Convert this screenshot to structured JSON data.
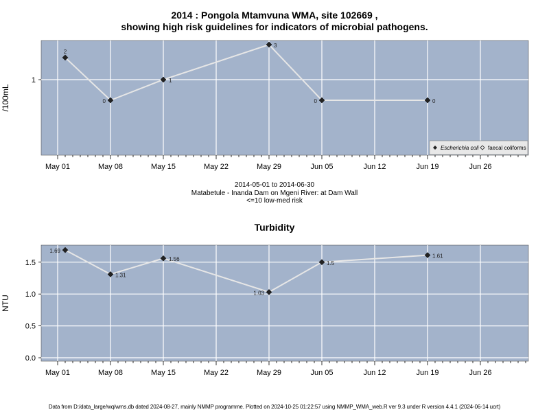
{
  "title_line1": "2014 : Pongola Mtamvuna WMA, site 102669 ,",
  "title_line2": "showing high risk guidelines for indicators of microbial pathogens.",
  "info": {
    "date_range": "2014-05-01 to 2014-06-30",
    "location": "Matabetule - Inanda Dam on Mgeni River: at Dam Wall",
    "risk": "<=10 low-med risk"
  },
  "footer": "Data from D:/data_large/wq/wms.db dated 2024-08-27, mainly NMMP programme. Plotted on 2024-10-25 01:22:57 using NMMP_WMA_web.R ver 9.3 under R version 4.4.1 (2024-06-14 ucrt)",
  "colors": {
    "panel_bg": "#a3b3cb",
    "grid": "#ffffff",
    "line": "#e6e6e6",
    "point": "#222222"
  },
  "chart_data": [
    {
      "type": "line",
      "title": "",
      "xlabel": "",
      "ylabel": "/100mL",
      "y_scale": "log",
      "x": [
        "2014-05-02",
        "2014-05-08",
        "2014-05-15",
        "2014-05-29",
        "2014-06-05",
        "2014-06-19"
      ],
      "values": [
        2,
        0,
        1,
        3,
        0,
        0
      ],
      "point_labels": [
        "2",
        "0",
        "1",
        "3",
        "0",
        "0"
      ],
      "y_ticks": [
        "1"
      ],
      "x_ticks": [
        "May 01",
        "May 08",
        "May 15",
        "May 22",
        "May 29",
        "Jun 05",
        "Jun 12",
        "Jun 19",
        "Jun 26"
      ],
      "series": [
        {
          "name": "Escherichia coli",
          "marker": "filled-diamond"
        },
        {
          "name": "faecal coliforms",
          "marker": "open-diamond"
        }
      ],
      "legend_position": "bottom-right",
      "grid": true
    },
    {
      "type": "line",
      "title": "Turbidity",
      "xlabel": "",
      "ylabel": "NTU",
      "x": [
        "2014-05-02",
        "2014-05-08",
        "2014-05-15",
        "2014-05-29",
        "2014-06-05",
        "2014-06-19"
      ],
      "values": [
        1.69,
        1.31,
        1.56,
        1.03,
        1.5,
        1.61
      ],
      "point_labels": [
        "1.69",
        "1.31",
        "1.56",
        "1.03",
        "1.5",
        "1.61"
      ],
      "y_ticks": [
        "0.0",
        "0.5",
        "1.0",
        "1.5"
      ],
      "x_ticks": [
        "May 01",
        "May 08",
        "May 15",
        "May 22",
        "May 29",
        "Jun 05",
        "Jun 12",
        "Jun 19",
        "Jun 26"
      ],
      "grid": true
    }
  ]
}
